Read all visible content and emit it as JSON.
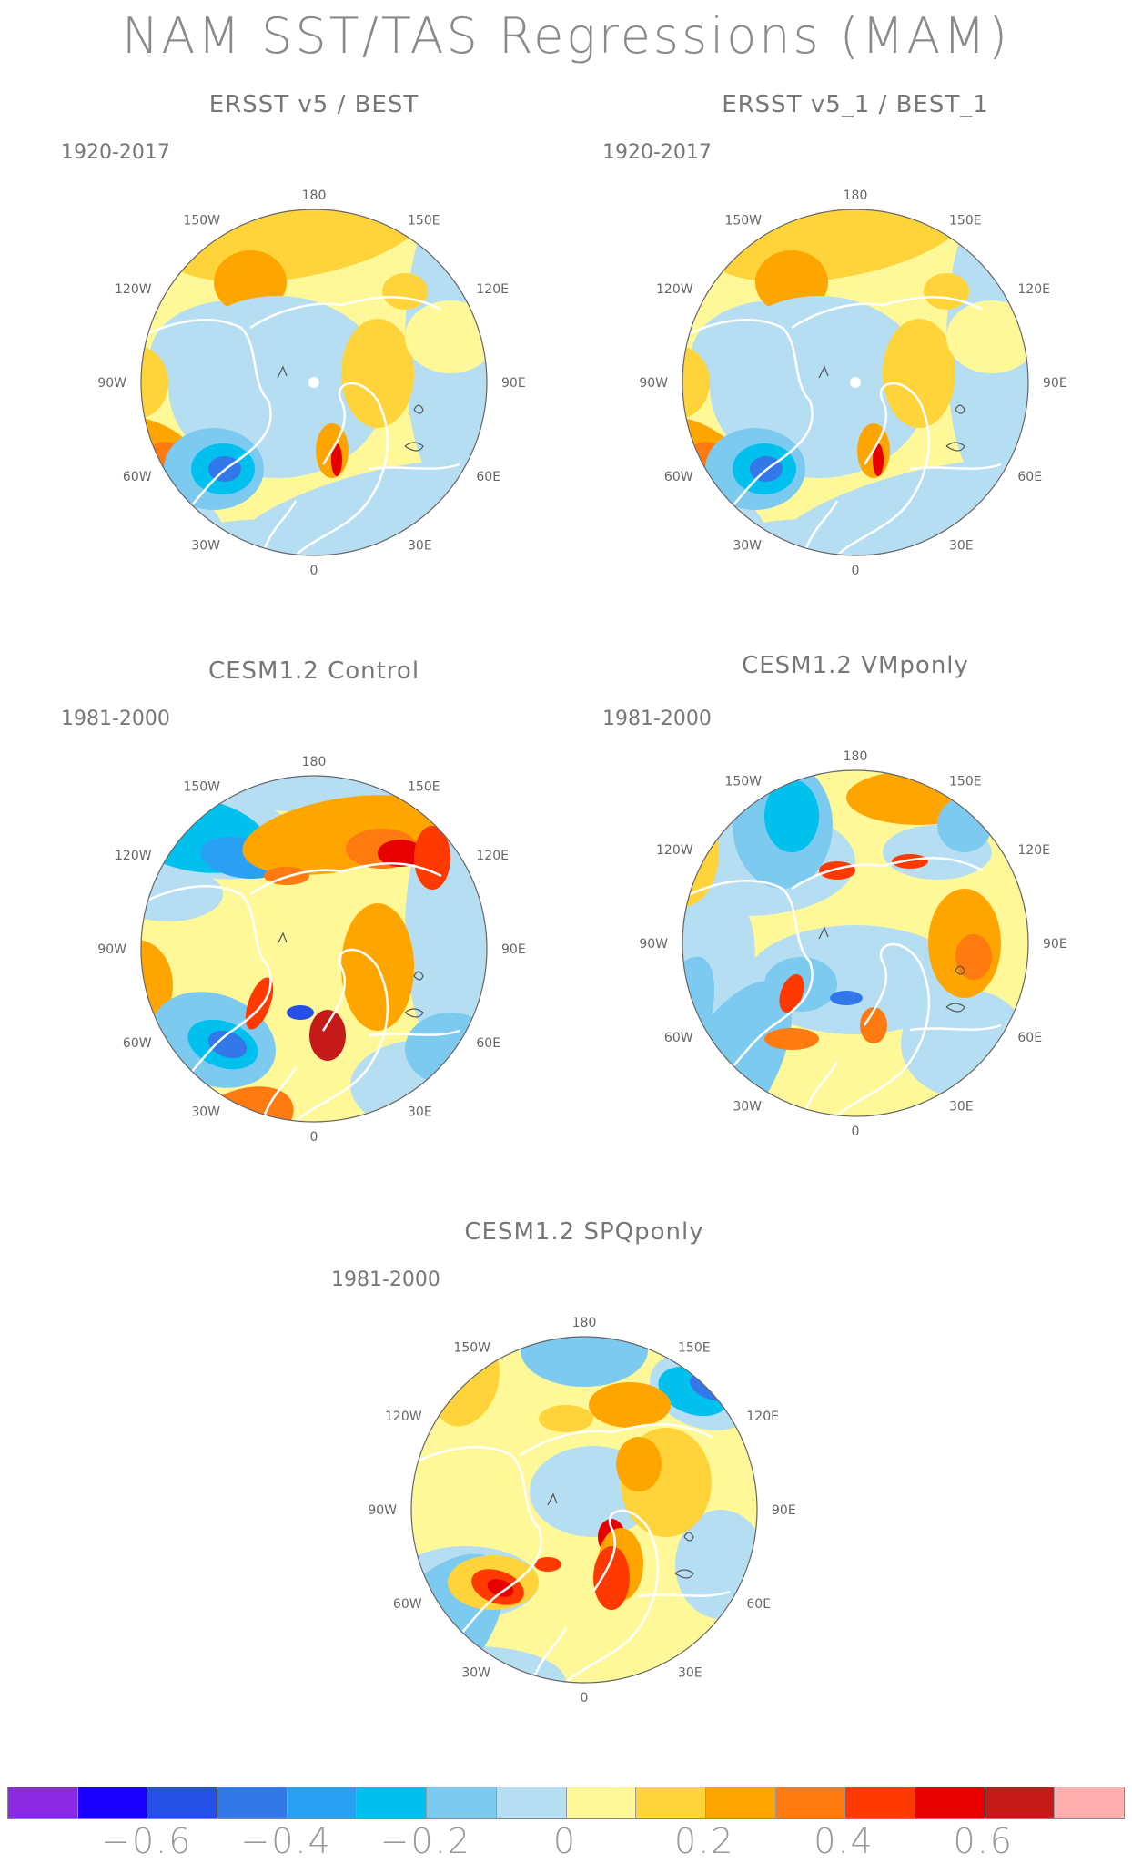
{
  "title": "NAM SST/TAS Regressions (MAM)",
  "panels": [
    {
      "title": "ERSST v5 / BEST",
      "period": "1920-2017",
      "style": "obs"
    },
    {
      "title": "ERSST v5_1 / BEST_1",
      "period": "1920-2017",
      "style": "obs"
    },
    {
      "title": "CESM1.2 Control",
      "period": "1981-2000",
      "style": "control"
    },
    {
      "title": "CESM1.2 VMponly",
      "period": "1981-2000",
      "style": "vmp"
    },
    {
      "title": "CESM1.2 SPQponly",
      "period": "1981-2000",
      "style": "spq"
    }
  ],
  "longitude_labels": [
    "180",
    "150E",
    "120E",
    "90E",
    "60E",
    "30E",
    "0",
    "30W",
    "60W",
    "90W",
    "120W",
    "150W"
  ],
  "colorbar": {
    "colors": [
      "#8a2be2",
      "#1a00ff",
      "#2450e6",
      "#3378e8",
      "#2aa0f5",
      "#00c0ee",
      "#7ccaf0",
      "#b5def3",
      "#fff898",
      "#ffd43a",
      "#ffa500",
      "#ff7a10",
      "#ff3a00",
      "#e60000",
      "#c41a1a",
      "#ffb0b0"
    ],
    "labels": [
      "−0.6",
      "−0.4",
      "−0.2",
      "0",
      "0.2",
      "0.4",
      "0.6"
    ]
  }
}
